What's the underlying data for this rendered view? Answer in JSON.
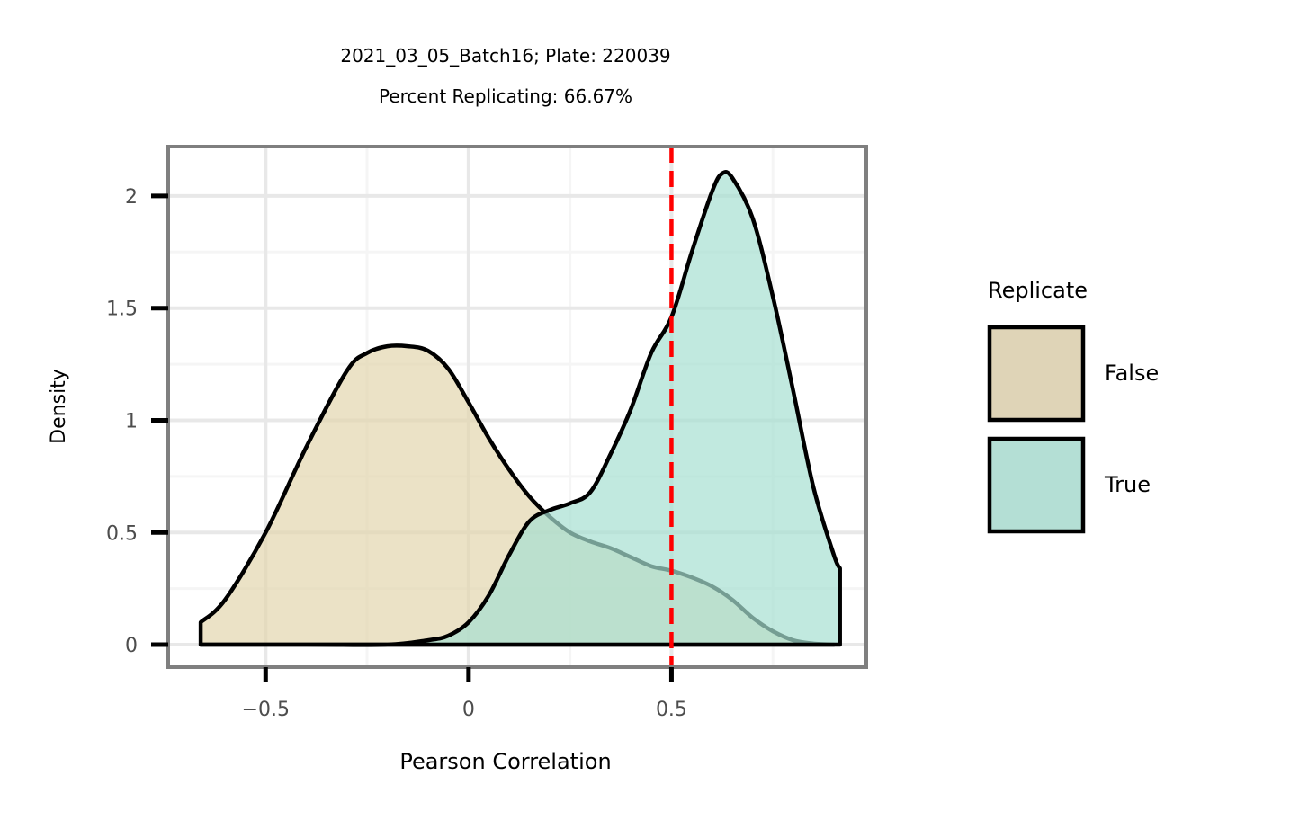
{
  "chart_data": {
    "type": "area",
    "title": "2021_03_05_Batch16; Plate: 220039",
    "subtitle": "Percent Replicating: 66.67%",
    "xlabel": "Pearson Correlation",
    "ylabel": "Density",
    "xlim": [
      -0.74,
      0.98
    ],
    "ylim": [
      -0.1,
      2.22
    ],
    "x_ticks": [
      -0.5,
      0,
      0.5
    ],
    "x_tick_labels": [
      "−0.5",
      "0",
      "0.5"
    ],
    "y_ticks": [
      0,
      0.5,
      1,
      1.5,
      2
    ],
    "y_tick_labels": [
      "0",
      "0.5",
      "1",
      "1.5",
      "2"
    ],
    "grid": true,
    "threshold_line": {
      "x": 0.5,
      "color": "#ff0000",
      "style": "dashed"
    },
    "legend": {
      "title": "Replicate",
      "placement": "right",
      "entries": [
        {
          "label": "False",
          "color": "#dfd4b7"
        },
        {
          "label": "True",
          "color": "#b4dfd5"
        }
      ]
    },
    "series": [
      {
        "name": "False",
        "fill": "#e3d5ae",
        "x": [
          -0.66,
          -0.6,
          -0.5,
          -0.4,
          -0.3,
          -0.25,
          -0.2,
          -0.15,
          -0.1,
          -0.05,
          0,
          0.05,
          0.1,
          0.15,
          0.2,
          0.25,
          0.3,
          0.35,
          0.4,
          0.45,
          0.5,
          0.55,
          0.6,
          0.65,
          0.7,
          0.75,
          0.8,
          0.85,
          0.9
        ],
        "y": [
          0.1,
          0.2,
          0.5,
          0.88,
          1.22,
          1.3,
          1.33,
          1.33,
          1.31,
          1.23,
          1.08,
          0.92,
          0.78,
          0.66,
          0.57,
          0.5,
          0.46,
          0.43,
          0.39,
          0.35,
          0.33,
          0.3,
          0.26,
          0.2,
          0.12,
          0.06,
          0.02,
          0.005,
          0
        ]
      },
      {
        "name": "True",
        "fill": "#a6e0d2",
        "x": [
          -0.66,
          -0.4,
          -0.2,
          -0.1,
          -0.05,
          0,
          0.05,
          0.1,
          0.15,
          0.2,
          0.25,
          0.3,
          0.35,
          0.4,
          0.45,
          0.5,
          0.55,
          0.6,
          0.625,
          0.65,
          0.7,
          0.75,
          0.8,
          0.85,
          0.9,
          0.915
        ],
        "y": [
          0,
          0,
          0,
          0.02,
          0.04,
          0.1,
          0.22,
          0.4,
          0.55,
          0.6,
          0.63,
          0.68,
          0.85,
          1.05,
          1.3,
          1.46,
          1.75,
          2.02,
          2.1,
          2.08,
          1.9,
          1.55,
          1.13,
          0.7,
          0.4,
          0.34
        ]
      }
    ]
  }
}
